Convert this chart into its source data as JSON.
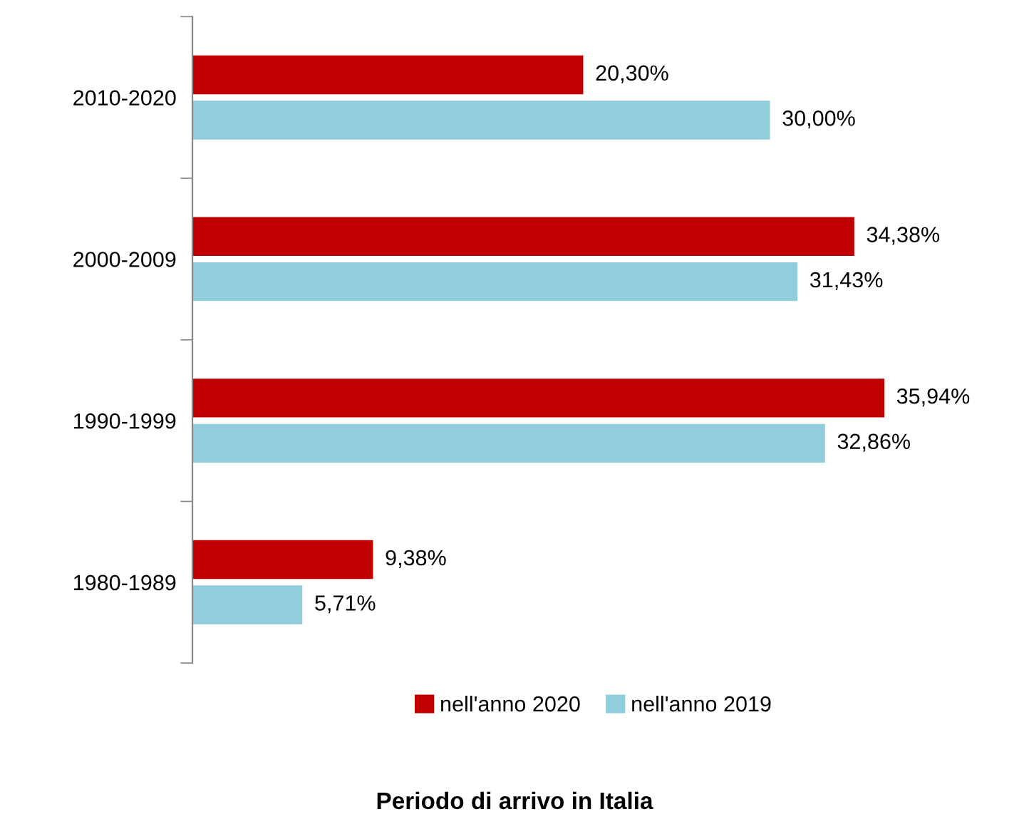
{
  "chart_data": {
    "type": "bar",
    "orientation": "horizontal",
    "annotations": [
      "Periodo di arrivo in Italia"
    ],
    "categories": [
      "2010-2020",
      "2000-2009",
      "1990-1999",
      "1980-1989"
    ],
    "series": [
      {
        "name": "nell'anno 2020",
        "color": "#c00000",
        "values": [
          20.3,
          34.38,
          35.94,
          9.38
        ],
        "value_labels": [
          "20,30%",
          "34,38%",
          "35,94%",
          "9,38%"
        ]
      },
      {
        "name": "nell'anno 2019",
        "color": "#92cddc",
        "values": [
          30.0,
          31.43,
          32.86,
          5.71
        ],
        "value_labels": [
          "30,00%",
          "31,43%",
          "32,86%",
          "5,71%"
        ]
      }
    ],
    "legend": "bottom",
    "grid": false
  }
}
